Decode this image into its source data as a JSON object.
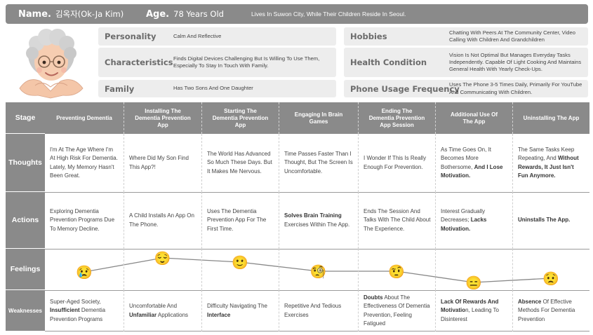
{
  "header": {
    "name_label": "Name.",
    "name_value": "김옥자(Ok-Ja Kim)",
    "age_label": "Age.",
    "age_value": "78 Years Old",
    "location": "Lives In Suwon City, While Their Children Reside In Seoul."
  },
  "profile": {
    "personality": {
      "label": "Personality",
      "value": "Calm And Reflective"
    },
    "characteristics": {
      "label": "Characteristics",
      "value": "Finds Digital Devices Challenging But Is Willing To Use Them, Especially To Stay In Touch With Family."
    },
    "family": {
      "label": "Family",
      "value": "Has Two Sons And One Daughter"
    },
    "hobbies": {
      "label": "Hobbies",
      "value": "Chatting With Peers At The Community Center, Video Calling With Children And Grandchildren"
    },
    "health": {
      "label": "Health Condition",
      "value": "Vision Is Not Optimal But Manages Everyday Tasks Independently. Capable Of Light Cooking And Maintains General Health With Yearly Check-Ups."
    },
    "phone": {
      "label": "Phone Usage Frequency",
      "value": "Uses The Phone 3-5 Times Daily, Primarily For YouTube And Communicating With Children."
    }
  },
  "rows": {
    "stage": "Stage",
    "thoughts": "Thoughts",
    "actions": "Actions",
    "feelings": "Feelings",
    "weaknesses": "Weaknesses"
  },
  "stages": [
    {
      "title": "Preventing Dementia",
      "thought": [
        {
          "t": "I'm At The Age Where I'm At High Risk For Dementia. Lately, My Memory Hasn't Been Great.",
          "b": false
        }
      ],
      "action": [
        {
          "t": "Exploring Dementia Prevention Programs Due To Memory Decline.",
          "b": false
        }
      ],
      "emoji": "😢",
      "weakness": [
        {
          "t": "Super-Aged Society, ",
          "b": false
        },
        {
          "t": "Insufficient",
          "b": true
        },
        {
          "t": " Dementia Prevention Programs",
          "b": false
        }
      ]
    },
    {
      "title": "Installing The Dementia Prevention App",
      "thought": [
        {
          "t": "Where Did My Son Find This App?!",
          "b": false
        }
      ],
      "action": [
        {
          "t": "A Child Installs An App On The Phone.",
          "b": false
        }
      ],
      "emoji": "😌",
      "weakness": [
        {
          "t": "Uncomfortable And ",
          "b": false
        },
        {
          "t": "Unfamiliar",
          "b": true
        },
        {
          "t": " Applications",
          "b": false
        }
      ]
    },
    {
      "title": "Starting The Dementia Prevention App",
      "thought": [
        {
          "t": "The World Has Advanced So Much These Days. But It Makes Me Nervous.",
          "b": false
        }
      ],
      "action": [
        {
          "t": "Uses The Dementia Prevention App For The First Time.",
          "b": false
        }
      ],
      "emoji": "🙂",
      "weakness": [
        {
          "t": "Difficulty Navigating The ",
          "b": false
        },
        {
          "t": "Interface",
          "b": true
        }
      ]
    },
    {
      "title": "Engaging In Brain Games",
      "thought": [
        {
          "t": "Time Passes Faster Than I Thought, But The Screen Is Uncomfortable.",
          "b": false
        }
      ],
      "action": [
        {
          "t": "Solves Brain Training",
          "b": true
        },
        {
          "t": " Exercises Within The App.",
          "b": false
        }
      ],
      "emoji": "🧐",
      "weakness": [
        {
          "t": "Repetitive And Tedious Exercises",
          "b": false
        }
      ]
    },
    {
      "title": "Ending The Dementia Prevention App Session",
      "thought": [
        {
          "t": "I Wonder If This Is Really Enough For Prevention.",
          "b": false
        }
      ],
      "action": [
        {
          "t": "Ends The Session And Talks With The Child About The Experience.",
          "b": false
        }
      ],
      "emoji": "🤨",
      "weakness": [
        {
          "t": "Doubts",
          "b": true
        },
        {
          "t": " About The Effectiveness Of Dementia Prevention, Feeling Fatigued",
          "b": false
        }
      ]
    },
    {
      "title": "Additional Use Of The App",
      "thought": [
        {
          "t": "As Time Goes On, It Becomes More Bothersome, ",
          "b": false
        },
        {
          "t": "And I Lose Motivation.",
          "b": true
        }
      ],
      "action": [
        {
          "t": "Interest Gradually Decreases; ",
          "b": false
        },
        {
          "t": "Lacks Motivation.",
          "b": true
        }
      ],
      "emoji": "😑",
      "weakness": [
        {
          "t": "Lack Of Rewards And Motivatio",
          "b": true
        },
        {
          "t": "n, Leading To Disinterest",
          "b": false
        }
      ]
    },
    {
      "title": "Uninstalling The App",
      "thought": [
        {
          "t": "The Same Tasks Keep Repeating, And ",
          "b": false
        },
        {
          "t": "Without Rewards, It Just Isn't Fun Anymore.",
          "b": true
        }
      ],
      "action": [
        {
          "t": "Uninstalls The App.",
          "b": true
        }
      ],
      "emoji": "😟",
      "weakness": [
        {
          "t": "Absence",
          "b": true
        },
        {
          "t": " Of Effective Methods For Dementia Prevention",
          "b": false
        }
      ]
    }
  ],
  "colors": {
    "header_bg": "#8a8a8a",
    "profile_box_bg": "#ededed",
    "curve_line": "#888888",
    "emoji_face": "#f9c623"
  }
}
